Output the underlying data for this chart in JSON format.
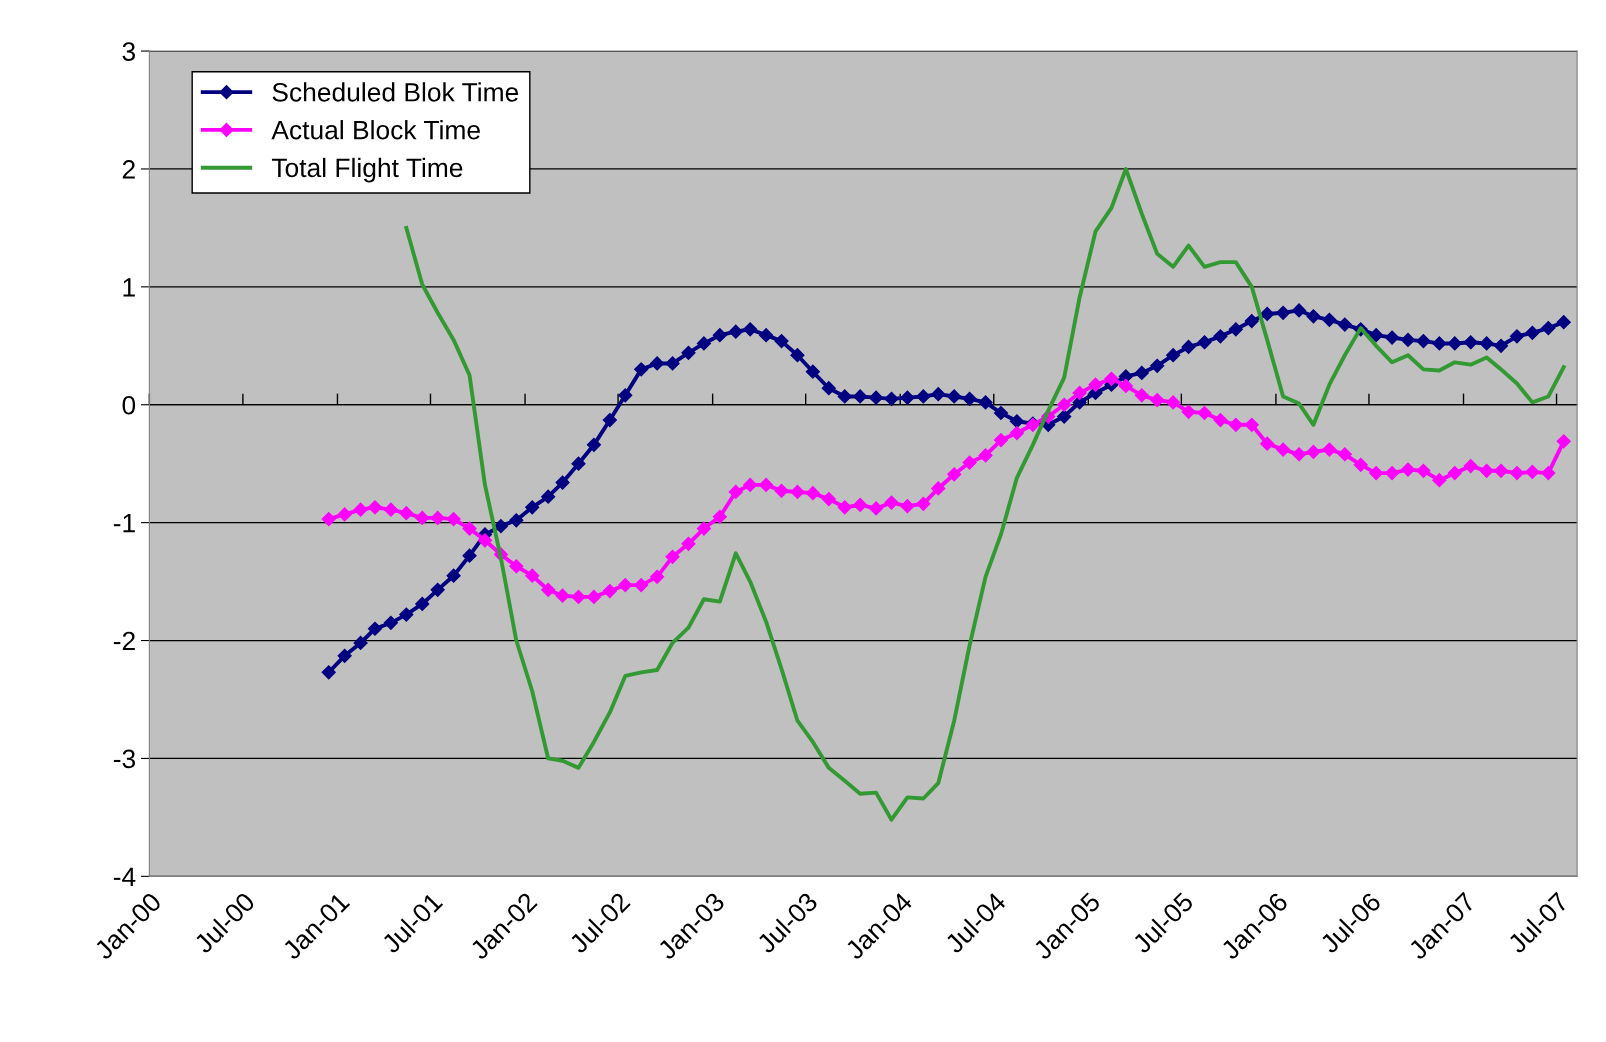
{
  "chart_data": {
    "type": "line",
    "x": [
      "2000-12-15",
      "2001-01-15",
      "2001-02-15",
      "2001-03-15",
      "2001-04-15",
      "2001-05-15",
      "2001-06-15",
      "2001-07-15",
      "2001-08-15",
      "2001-09-15",
      "2001-10-15",
      "2001-11-15",
      "2001-12-15",
      "2002-01-15",
      "2002-02-15",
      "2002-03-15",
      "2002-04-15",
      "2002-05-15",
      "2002-06-15",
      "2002-07-15",
      "2002-08-15",
      "2002-09-15",
      "2002-10-15",
      "2002-11-15",
      "2002-12-15",
      "2003-01-15",
      "2003-02-15",
      "2003-03-15",
      "2003-04-15",
      "2003-05-15",
      "2003-06-15",
      "2003-07-15",
      "2003-08-15",
      "2003-09-15",
      "2003-10-15",
      "2003-11-15",
      "2003-12-15",
      "2004-01-15",
      "2004-02-15",
      "2004-03-15",
      "2004-04-15",
      "2004-05-15",
      "2004-06-15",
      "2004-07-15",
      "2004-08-15",
      "2004-09-15",
      "2004-10-15",
      "2004-11-15",
      "2004-12-15",
      "2005-01-15",
      "2005-02-15",
      "2005-03-15",
      "2005-04-15",
      "2005-05-15",
      "2005-06-15",
      "2005-07-15",
      "2005-08-15",
      "2005-09-15",
      "2005-10-15",
      "2005-11-15",
      "2005-12-15",
      "2006-01-15",
      "2006-02-15",
      "2006-03-15",
      "2006-04-15",
      "2006-05-15",
      "2006-06-15",
      "2006-07-15",
      "2006-08-15",
      "2006-09-15",
      "2006-10-15",
      "2006-11-15",
      "2006-12-15",
      "2007-01-15",
      "2007-02-15",
      "2007-03-15",
      "2007-04-15",
      "2007-05-15",
      "2007-06-15",
      "2007-07-15"
    ],
    "series": [
      {
        "name": "Scheduled Blok Time",
        "color": "#000080",
        "marker": "diamond",
        "values": [
          -2.27,
          -2.13,
          -2.02,
          -1.9,
          -1.85,
          -1.78,
          -1.69,
          -1.57,
          -1.45,
          -1.28,
          -1.1,
          -1.03,
          -0.98,
          -0.87,
          -0.78,
          -0.66,
          -0.5,
          -0.34,
          -0.13,
          0.08,
          0.3,
          0.35,
          0.35,
          0.44,
          0.52,
          0.59,
          0.62,
          0.64,
          0.59,
          0.54,
          0.42,
          0.28,
          0.14,
          0.07,
          0.07,
          0.06,
          0.05,
          0.06,
          0.07,
          0.09,
          0.07,
          0.05,
          0.02,
          -0.07,
          -0.14,
          -0.16,
          -0.17,
          -0.1,
          0.02,
          0.1,
          0.17,
          0.24,
          0.27,
          0.33,
          0.42,
          0.49,
          0.53,
          0.58,
          0.64,
          0.71,
          0.77,
          0.78,
          0.8,
          0.75,
          0.72,
          0.68,
          0.64,
          0.59,
          0.57,
          0.55,
          0.54,
          0.52,
          0.52,
          0.53,
          0.52,
          0.5,
          0.58,
          0.61,
          0.65,
          0.7
        ]
      },
      {
        "name": "Actual Block Time",
        "color": "#ff00ff",
        "marker": "diamond",
        "values": [
          -0.97,
          -0.93,
          -0.89,
          -0.87,
          -0.89,
          -0.92,
          -0.96,
          -0.96,
          -0.97,
          -1.05,
          -1.15,
          -1.27,
          -1.37,
          -1.45,
          -1.57,
          -1.62,
          -1.63,
          -1.63,
          -1.58,
          -1.53,
          -1.53,
          -1.46,
          -1.29,
          -1.18,
          -1.05,
          -0.95,
          -0.74,
          -0.68,
          -0.68,
          -0.73,
          -0.74,
          -0.75,
          -0.8,
          -0.87,
          -0.85,
          -0.88,
          -0.83,
          -0.86,
          -0.84,
          -0.71,
          -0.59,
          -0.49,
          -0.43,
          -0.3,
          -0.24,
          -0.17,
          -0.1,
          0.0,
          0.1,
          0.17,
          0.22,
          0.16,
          0.08,
          0.04,
          0.02,
          -0.06,
          -0.07,
          -0.13,
          -0.17,
          -0.17,
          -0.33,
          -0.38,
          -0.42,
          -0.4,
          -0.38,
          -0.42,
          -0.51,
          -0.58,
          -0.58,
          -0.55,
          -0.56,
          -0.64,
          -0.58,
          -0.52,
          -0.56,
          -0.56,
          -0.58,
          -0.57,
          -0.58,
          -0.31
        ]
      },
      {
        "name": "Total Flight Time",
        "color": "#339933",
        "marker": "none",
        "values": [
          null,
          null,
          null,
          null,
          null,
          1.5,
          1.02,
          0.78,
          0.55,
          0.25,
          -0.68,
          -1.3,
          -2.0,
          -2.43,
          -3.0,
          -3.02,
          -3.08,
          -2.86,
          -2.61,
          -2.3,
          -2.27,
          -2.25,
          -2.02,
          -1.89,
          -1.65,
          -1.67,
          -1.26,
          -1.5,
          -1.84,
          -2.24,
          -2.68,
          -2.86,
          -3.08,
          -3.19,
          -3.3,
          -3.29,
          -3.52,
          -3.33,
          -3.34,
          -3.21,
          -2.68,
          -2.04,
          -1.46,
          -1.1,
          -0.62,
          -0.34,
          -0.05,
          0.23,
          0.91,
          1.47,
          1.67,
          2.0,
          1.62,
          1.28,
          1.17,
          1.35,
          1.17,
          1.21,
          1.21,
          1.0,
          0.55,
          0.07,
          0.01,
          -0.17,
          0.17,
          0.42,
          0.65,
          0.5,
          0.36,
          0.42,
          0.3,
          0.29,
          0.36,
          0.34,
          0.4,
          0.3,
          0.18,
          0.02,
          0.07,
          0.32
        ]
      }
    ],
    "xlim": [
      "2000-01-01",
      "2007-08-10"
    ],
    "xticks": [
      {
        "value": "2000-01-01",
        "label": "Jan-00"
      },
      {
        "value": "2000-07-01",
        "label": "Jul-00"
      },
      {
        "value": "2001-01-01",
        "label": "Jan-01"
      },
      {
        "value": "2001-07-01",
        "label": "Jul-01"
      },
      {
        "value": "2002-01-01",
        "label": "Jan-02"
      },
      {
        "value": "2002-07-01",
        "label": "Jul-02"
      },
      {
        "value": "2003-01-01",
        "label": "Jan-03"
      },
      {
        "value": "2003-07-01",
        "label": "Jul-03"
      },
      {
        "value": "2004-01-01",
        "label": "Jan-04"
      },
      {
        "value": "2004-07-01",
        "label": "Jul-04"
      },
      {
        "value": "2005-01-01",
        "label": "Jan-05"
      },
      {
        "value": "2005-07-01",
        "label": "Jul-05"
      },
      {
        "value": "2006-01-01",
        "label": "Jan-06"
      },
      {
        "value": "2006-07-01",
        "label": "Jul-06"
      },
      {
        "value": "2007-01-01",
        "label": "Jan-07"
      },
      {
        "value": "2007-07-01",
        "label": "Jul-07"
      }
    ],
    "ylim": [
      -4,
      3
    ],
    "yticks": [
      -4,
      -3,
      -2,
      -1,
      0,
      1,
      2,
      3
    ],
    "grid": "y",
    "legend": "top left",
    "line_style": "solid"
  }
}
